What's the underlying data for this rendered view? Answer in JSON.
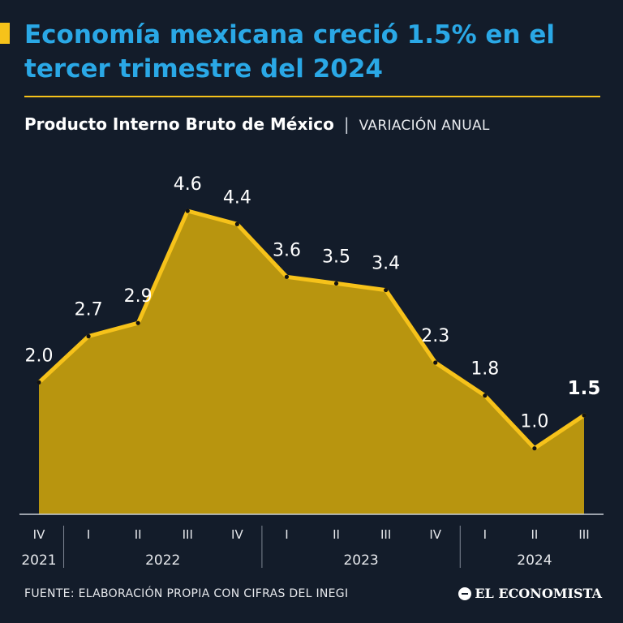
{
  "header": {
    "title": "Economía mexicana creció 1.5% en el tercer trimestre del 2024",
    "subtitle": "Producto Interno Bruto de México",
    "unit": "VARIACIÓN ANUAL"
  },
  "footer": {
    "source": "FUENTE: ELABORACIÓN PROPIA CON CIFRAS DEL INEGI",
    "logo": "EL ECONOMISTA"
  },
  "colors": {
    "background": "#131c2a",
    "title": "#2aa8e6",
    "accent": "#f6c21a",
    "area": "#b8950f"
  },
  "chart_data": {
    "type": "area",
    "categories": [
      "IV",
      "I",
      "II",
      "III",
      "IV",
      "I",
      "II",
      "III",
      "IV",
      "I",
      "II",
      "III"
    ],
    "years": [
      {
        "label": "2021",
        "from": 0,
        "to": 0
      },
      {
        "label": "2022",
        "from": 1,
        "to": 4
      },
      {
        "label": "2023",
        "from": 5,
        "to": 8
      },
      {
        "label": "2024",
        "from": 9,
        "to": 11
      }
    ],
    "values": [
      2.0,
      2.7,
      2.9,
      4.6,
      4.4,
      3.6,
      3.5,
      3.4,
      2.3,
      1.8,
      1.0,
      1.5
    ],
    "data_labels": [
      "2.0",
      "2.7",
      "2.9",
      "4.6",
      "4.4",
      "3.6",
      "3.5",
      "3.4",
      "2.3",
      "1.8",
      "1.0",
      "1.5"
    ],
    "highlight_index": 11,
    "ylim": [
      0,
      4.6
    ],
    "grid": false,
    "legend": "none"
  }
}
